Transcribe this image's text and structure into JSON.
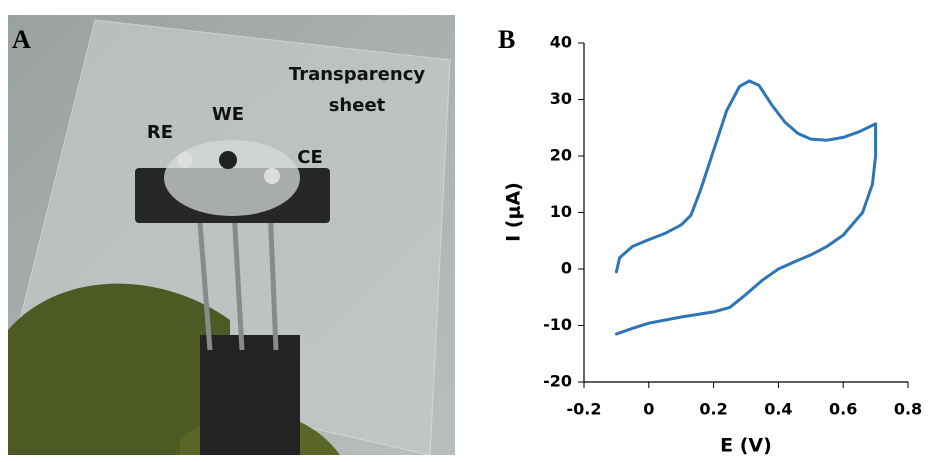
{
  "figure": {
    "panel_labels": [
      "A",
      "B"
    ],
    "photo": {
      "electrode_labels": [
        "RE",
        "WE",
        "CE"
      ],
      "sheet_label": [
        "Transparency",
        "sheet"
      ]
    }
  },
  "chart_data": {
    "type": "line",
    "color": "#2e75b6",
    "x_label": "E (V)",
    "y_label": "I (μA)",
    "x": [
      -0.1,
      -0.09,
      -0.05,
      0,
      0.05,
      0.1,
      0.13,
      0.16,
      0.2,
      0.24,
      0.28,
      0.31,
      0.34,
      0.38,
      0.42,
      0.46,
      0.5,
      0.55,
      0.6,
      0.65,
      0.7,
      0.7,
      0.69,
      0.66,
      0.6,
      0.55,
      0.5,
      0.45,
      0.4,
      0.35,
      0.3,
      0.25,
      0.2,
      0.1,
      0,
      -0.05,
      -0.1
    ],
    "values": [
      -0.5,
      2,
      4,
      5.2,
      6.3,
      7.8,
      9.5,
      14,
      21,
      28,
      32.3,
      33.3,
      32.5,
      29,
      26,
      24,
      23,
      22.8,
      23.3,
      24.3,
      25.7,
      20,
      15,
      10,
      6,
      4,
      2.5,
      1.3,
      0,
      -2,
      -4.5,
      -6.8,
      -7.6,
      -8.5,
      -9.6,
      -10.5,
      -11.5
    ],
    "xlim": [
      -0.2,
      0.8
    ],
    "xticks": [
      -0.2,
      0,
      0.2,
      0.4,
      0.6,
      0.8
    ],
    "ylim": [
      -20,
      40
    ],
    "yticks": [
      -20,
      -10,
      0,
      10,
      20,
      30,
      40
    ]
  }
}
